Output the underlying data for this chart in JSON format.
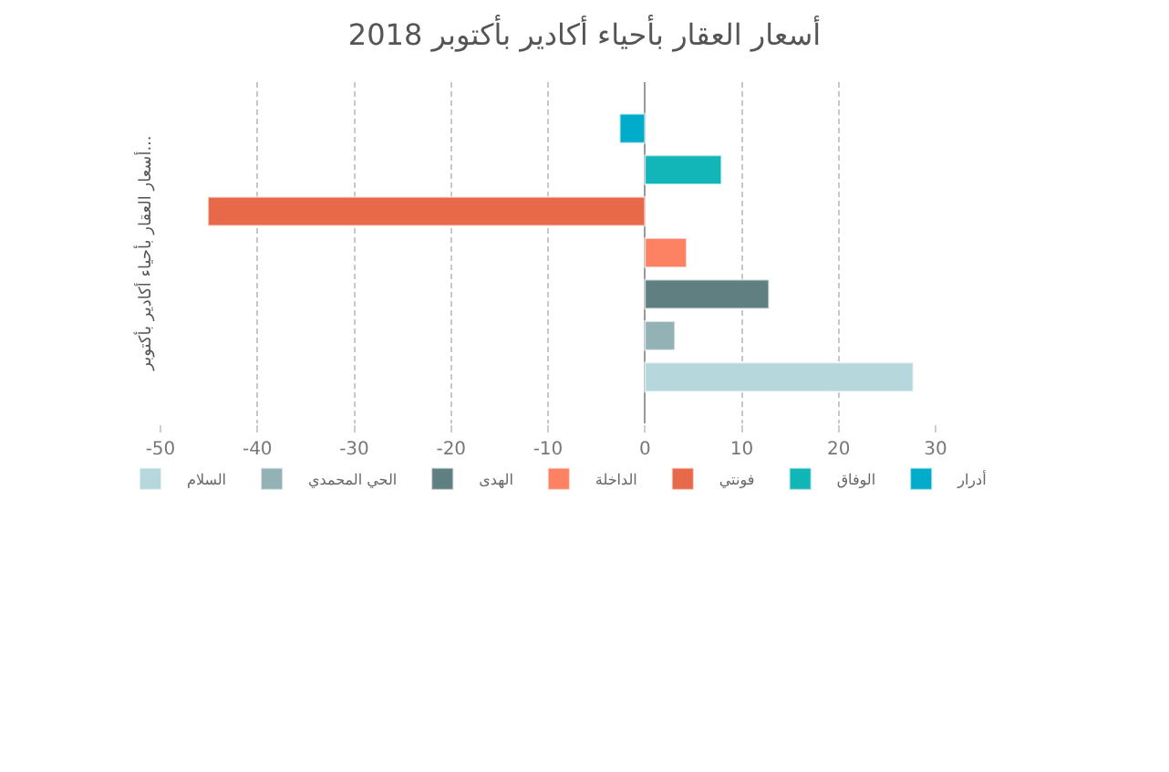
{
  "chart_data": {
    "type": "bar",
    "orientation": "horizontal",
    "title": "أسعار العقار بأحياء أكادير بأكتوبر 2018",
    "ylabel": "أسعار العقار بأحياء أكادير بأكتوبر...",
    "categories": [
      null
    ],
    "series": [
      {
        "name": "أدرار",
        "color": "#00acc9",
        "values": [
          -2.6
        ]
      },
      {
        "name": "الوفاق",
        "color": "#12b5b8",
        "values": [
          7.9
        ]
      },
      {
        "name": "فونتي",
        "color": "#e8694a",
        "values": [
          -45.1
        ]
      },
      {
        "name": "الداخلة",
        "color": "#fd8264",
        "values": [
          4.3
        ]
      },
      {
        "name": "الهدى",
        "color": "#5f7f80",
        "values": [
          12.8
        ]
      },
      {
        "name": "الحي المحمدي",
        "color": "#93b2b6",
        "values": [
          3.1
        ]
      },
      {
        "name": "السلام",
        "color": "#b6d7dc",
        "values": [
          27.7
        ]
      }
    ],
    "xlim": [
      -50,
      30
    ],
    "xticks": [
      -50,
      -40,
      -30,
      -20,
      -10,
      0,
      10,
      20,
      30
    ],
    "grid": "x",
    "legend": "bottom",
    "tick_labels": "x"
  }
}
